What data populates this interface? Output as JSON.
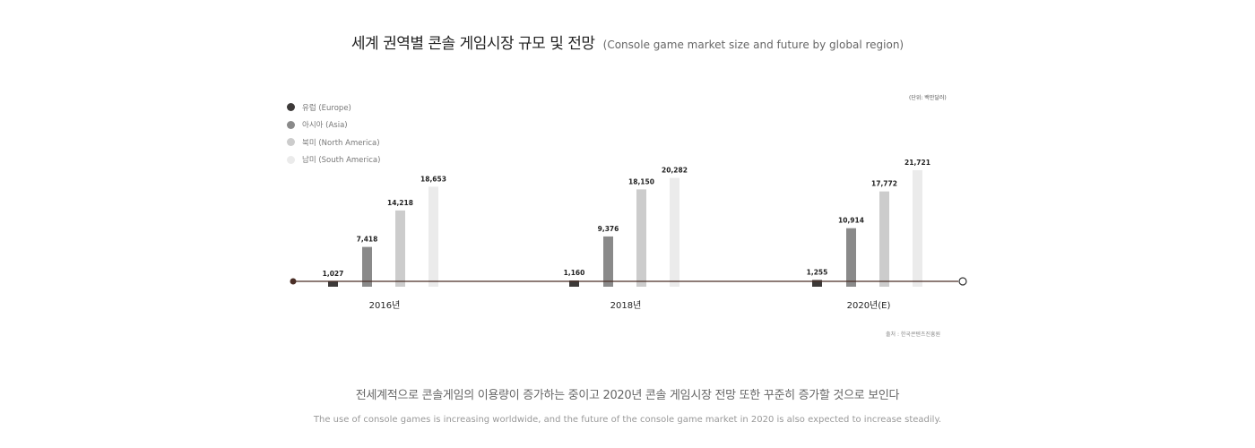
{
  "header": {
    "title_ko": "세계 권역별 콘솔 게임시장 규모 및 전망",
    "title_en": "(Console game market size and future by global region)"
  },
  "unit_label": "(단위: 백만달러)",
  "source_label": "출처 : 한국콘텐츠진흥원",
  "summary": {
    "ko": "전세계적으로 콘솔게임의 이용량이 증가하는 중이고 2020년 콘솔 게임시장 전망 또한 꾸준히 증가할 것으로 보인다",
    "en": "The use of console games is increasing worldwide, and the future of the console game market in 2020 is also expected to increase steadily."
  },
  "colors": {
    "europe": "#3d3a39",
    "asia": "#8a8a8a",
    "north_america": "#cccccc",
    "south_america": "#ebebeb",
    "axis": "#4a2e26"
  },
  "chart_data": {
    "type": "bar",
    "title": "세계 권역별 콘솔 게임시장 규모 및 전망",
    "categories": [
      "2016년",
      "2018년",
      "2020년(E)"
    ],
    "series": [
      {
        "name": "유럽 (Europe)",
        "values": [
          1027,
          1160,
          1255
        ]
      },
      {
        "name": "아시아 (Asia)",
        "values": [
          7418,
          9376,
          10914
        ]
      },
      {
        "name": "북미 (North America)",
        "values": [
          14218,
          18150,
          17772
        ]
      },
      {
        "name": "남미 (South America)",
        "values": [
          18653,
          20282,
          21721
        ]
      }
    ],
    "value_labels": [
      [
        "1,027",
        "1,160",
        "1,255"
      ],
      [
        "7,418",
        "9,376",
        "10,914"
      ],
      [
        "14,218",
        "18,150",
        "17,772"
      ],
      [
        "18,653",
        "20,282",
        "21,721"
      ]
    ],
    "legend": "top-left",
    "grid": false
  }
}
